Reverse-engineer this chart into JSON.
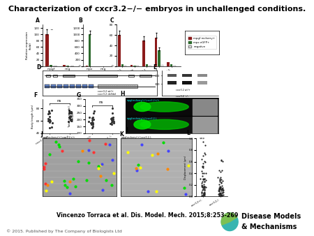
{
  "title": "Characterization of cxcr3.2−/− embryos in unchallenged conditions.",
  "title_fontsize": 8.0,
  "citation": "Vincenzo Torraca et al. Dis. Model. Mech. 2015;8:253-269",
  "citation_fontsize": 5.8,
  "copyright": "© 2015. Published by The Company of Biologists Ltd",
  "copyright_fontsize": 4.5,
  "bg_color": "#ffffff",
  "bar_red": "#8B1A1A",
  "bar_green": "#2d6a2d",
  "bar_white": "#ffffff",
  "logo_teal": "#38b5b0",
  "logo_green": "#7dc053",
  "logo_text1": "Disease Models",
  "logo_text2": "& Mechanisms",
  "logo_fontsize": 7.0
}
